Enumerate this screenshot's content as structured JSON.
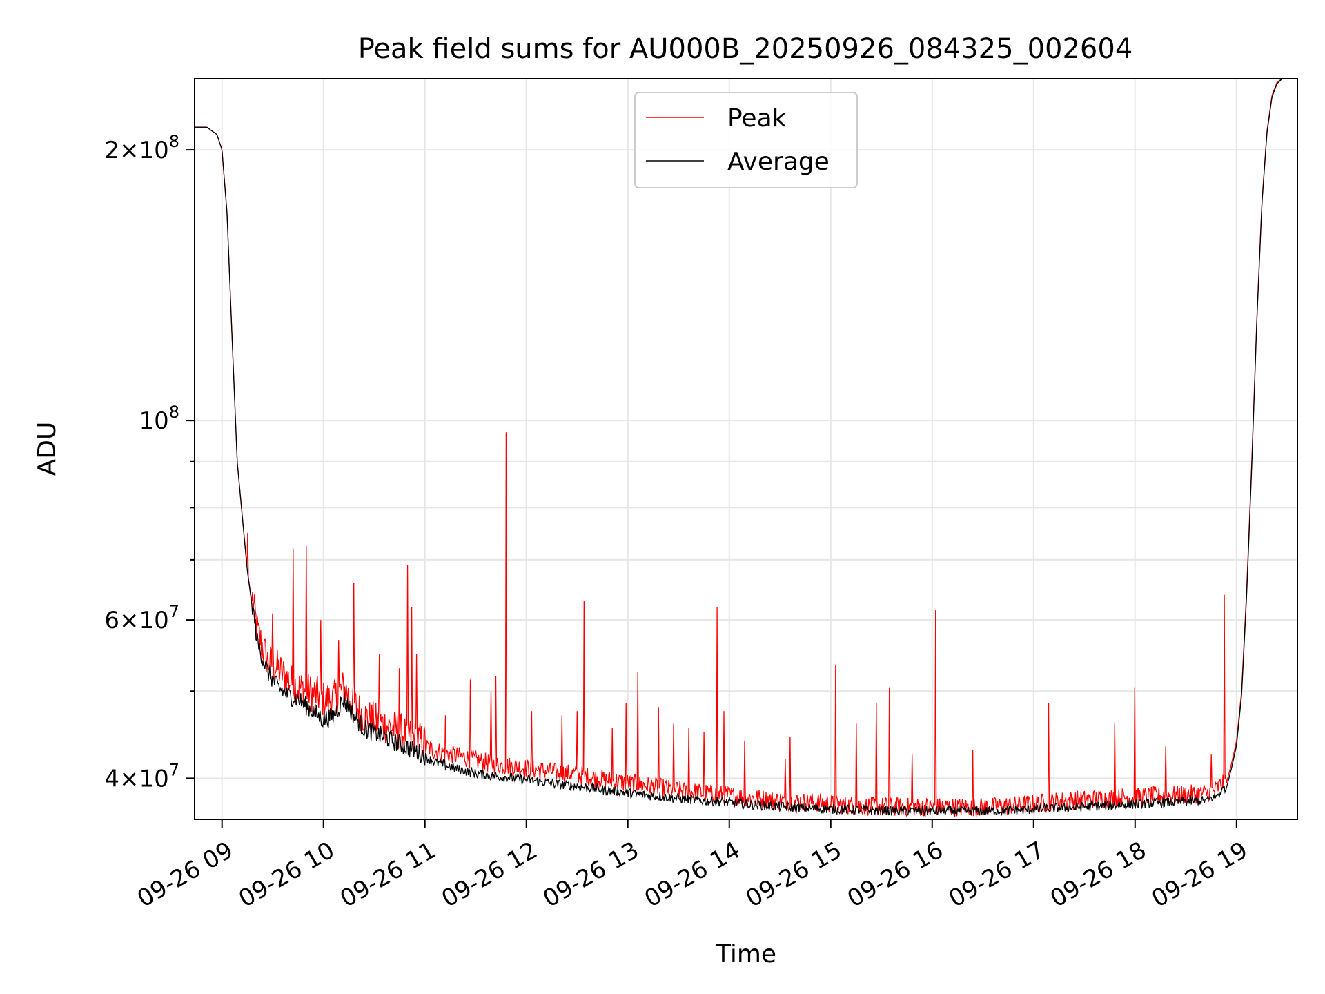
{
  "chart_data": {
    "type": "line",
    "title": "Peak field sums for AU000B_20250926_084325_002604",
    "xlabel": "Time",
    "ylabel": "ADU",
    "yscale": "log",
    "ylim": [
      36000000,
      240000000
    ],
    "xlim": [
      8.73,
      19.6
    ],
    "grid": true,
    "legend_position": "top-center",
    "x_ticks": [
      {
        "value": 9,
        "label": "09-26 09"
      },
      {
        "value": 10,
        "label": "09-26 10"
      },
      {
        "value": 11,
        "label": "09-26 11"
      },
      {
        "value": 12,
        "label": "09-26 12"
      },
      {
        "value": 13,
        "label": "09-26 13"
      },
      {
        "value": 14,
        "label": "09-26 14"
      },
      {
        "value": 15,
        "label": "09-26 15"
      },
      {
        "value": 16,
        "label": "09-26 16"
      },
      {
        "value": 17,
        "label": "09-26 17"
      },
      {
        "value": 18,
        "label": "09-26 18"
      },
      {
        "value": 19,
        "label": "09-26 19"
      }
    ],
    "y_major_ticks": [
      {
        "value": 40000000,
        "mantissa": "4",
        "base": "10",
        "exponent": "7"
      },
      {
        "value": 60000000,
        "mantissa": "6",
        "base": "10",
        "exponent": "7"
      },
      {
        "value": 100000000,
        "mantissa": "",
        "base": "10",
        "exponent": "8"
      },
      {
        "value": 200000000,
        "mantissa": "2",
        "base": "10",
        "exponent": "8"
      }
    ],
    "y_minor_ticks": [
      50000000,
      70000000,
      80000000,
      90000000
    ],
    "series": [
      {
        "name": "Peak",
        "color": "#ff0000",
        "x": [
          8.73,
          8.85,
          8.95,
          9.0,
          9.05,
          9.08,
          9.15,
          9.25,
          9.35,
          9.45,
          9.55,
          9.65,
          9.75,
          9.85,
          9.95,
          10.0,
          10.1,
          10.2,
          10.3,
          10.4,
          10.5,
          10.7,
          10.9,
          11.1,
          11.3,
          11.5,
          11.7,
          11.9,
          12.1,
          12.3,
          12.5,
          12.7,
          12.9,
          13.1,
          13.3,
          13.5,
          13.7,
          13.9,
          14.1,
          14.3,
          14.5,
          14.7,
          14.9,
          15.1,
          15.3,
          15.5,
          15.7,
          15.9,
          16.1,
          16.3,
          16.5,
          16.7,
          16.9,
          17.1,
          17.3,
          17.5,
          17.7,
          17.9,
          18.1,
          18.3,
          18.5,
          18.7,
          18.8,
          18.9,
          18.95,
          19.0,
          19.05,
          19.1,
          19.15,
          19.2,
          19.25,
          19.3,
          19.35,
          19.4,
          19.45,
          19.5,
          19.6
        ],
        "y": [
          212000000,
          212000000,
          208000000,
          200000000,
          170000000,
          140000000,
          90000000,
          68000000,
          57000000,
          53000000,
          52000000,
          50500000,
          49500000,
          49000000,
          48500000,
          48000000,
          48000000,
          49500000,
          47500000,
          46000000,
          45500000,
          44500000,
          43500000,
          42500000,
          42000000,
          41500000,
          41000000,
          40800000,
          40500000,
          40200000,
          40000000,
          39600000,
          39300000,
          39000000,
          38700000,
          38400000,
          38200000,
          38000000,
          37800000,
          37600000,
          37400000,
          37300000,
          37200000,
          37000000,
          36900000,
          36850000,
          36800000,
          36800000,
          36800000,
          36800000,
          36800000,
          36900000,
          37000000,
          37200000,
          37400000,
          37500000,
          37600000,
          37700000,
          37800000,
          37900000,
          38000000,
          38100000,
          38500000,
          39500000,
          41500000,
          44000000,
          50000000,
          65000000,
          90000000,
          130000000,
          175000000,
          210000000,
          230000000,
          238000000,
          240000000,
          240000000,
          240000000
        ],
        "spikes": [
          [
            9.25,
            75000000
          ],
          [
            9.5,
            61000000
          ],
          [
            9.7,
            72000000
          ],
          [
            9.83,
            72500000
          ],
          [
            9.97,
            60000000
          ],
          [
            10.15,
            57000000
          ],
          [
            10.3,
            66000000
          ],
          [
            10.55,
            55000000
          ],
          [
            10.75,
            53000000
          ],
          [
            10.83,
            69000000
          ],
          [
            10.87,
            62000000
          ],
          [
            10.92,
            55000000
          ],
          [
            11.2,
            47000000
          ],
          [
            11.45,
            51500000
          ],
          [
            11.65,
            50000000
          ],
          [
            11.7,
            52000000
          ],
          [
            11.8,
            97000000
          ],
          [
            12.05,
            47500000
          ],
          [
            12.35,
            47000000
          ],
          [
            12.5,
            47500000
          ],
          [
            12.57,
            63000000
          ],
          [
            12.85,
            45500000
          ],
          [
            12.98,
            48500000
          ],
          [
            13.1,
            52500000
          ],
          [
            13.3,
            48000000
          ],
          [
            13.45,
            46000000
          ],
          [
            13.6,
            45500000
          ],
          [
            13.75,
            45000000
          ],
          [
            13.88,
            62000000
          ],
          [
            13.95,
            47500000
          ],
          [
            14.15,
            44000000
          ],
          [
            14.55,
            42000000
          ],
          [
            14.6,
            44500000
          ],
          [
            15.05,
            53500000
          ],
          [
            15.25,
            46000000
          ],
          [
            15.45,
            48500000
          ],
          [
            15.58,
            50500000
          ],
          [
            15.8,
            42500000
          ],
          [
            16.03,
            61500000
          ],
          [
            16.4,
            43000000
          ],
          [
            17.15,
            48500000
          ],
          [
            17.8,
            46000000
          ],
          [
            18.0,
            50500000
          ],
          [
            18.3,
            43500000
          ],
          [
            18.75,
            42500000
          ],
          [
            18.88,
            64000000
          ]
        ]
      },
      {
        "name": "Average",
        "color": "#000000",
        "x": [
          8.73,
          8.85,
          8.95,
          9.0,
          9.05,
          9.08,
          9.15,
          9.25,
          9.35,
          9.45,
          9.55,
          9.65,
          9.75,
          9.85,
          9.95,
          10.0,
          10.1,
          10.2,
          10.3,
          10.4,
          10.5,
          10.7,
          10.9,
          11.1,
          11.3,
          11.5,
          11.7,
          11.9,
          12.1,
          12.3,
          12.5,
          12.7,
          12.9,
          13.1,
          13.3,
          13.5,
          13.7,
          13.9,
          14.1,
          14.3,
          14.5,
          14.7,
          14.9,
          15.1,
          15.3,
          15.5,
          15.7,
          15.9,
          16.1,
          16.3,
          16.5,
          16.7,
          16.9,
          17.1,
          17.3,
          17.5,
          17.7,
          17.9,
          18.1,
          18.3,
          18.5,
          18.7,
          18.8,
          18.9,
          18.95,
          19.0,
          19.05,
          19.1,
          19.15,
          19.2,
          19.25,
          19.3,
          19.35,
          19.4,
          19.45,
          19.5,
          19.6
        ],
        "y": [
          212000000,
          212000000,
          208000000,
          200000000,
          170000000,
          140000000,
          90000000,
          68000000,
          56000000,
          52000000,
          50000000,
          49000000,
          48500000,
          47500000,
          46500000,
          46000000,
          46500000,
          48500000,
          46500000,
          45000000,
          44500000,
          43500000,
          42500000,
          41500000,
          40800000,
          40300000,
          40000000,
          39800000,
          39500000,
          39200000,
          39000000,
          38700000,
          38500000,
          38200000,
          38000000,
          37800000,
          37600000,
          37500000,
          37300000,
          37150000,
          37000000,
          36900000,
          36800000,
          36750000,
          36700000,
          36650000,
          36600000,
          36600000,
          36600000,
          36600000,
          36600000,
          36650000,
          36700000,
          36800000,
          36900000,
          37000000,
          37100000,
          37200000,
          37300000,
          37400000,
          37500000,
          37600000,
          38000000,
          39000000,
          41000000,
          43500000,
          49500000,
          64000000,
          89000000,
          129000000,
          174000000,
          209000000,
          229000000,
          237000000,
          240000000,
          240000000,
          240000000
        ]
      }
    ]
  }
}
